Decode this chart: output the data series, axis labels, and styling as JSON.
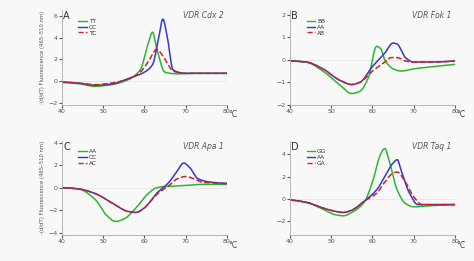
{
  "panels": [
    {
      "label": "A",
      "title": "VDR Cdx 2",
      "legend": [
        "TT",
        "CC",
        "TC"
      ],
      "colors": [
        "#2db52d",
        "#3535d0",
        "#cc2222"
      ],
      "dashes": [
        false,
        false,
        true
      ],
      "ylim": [
        -2.2,
        6.5
      ],
      "yticks": [
        -2,
        0,
        2,
        4,
        6
      ],
      "curves": [
        [
          [
            40,
            -0.15
          ],
          [
            44,
            -0.25
          ],
          [
            48,
            -0.5
          ],
          [
            52,
            -0.35
          ],
          [
            56,
            0.1
          ],
          [
            59,
            1.0
          ],
          [
            61,
            3.5
          ],
          [
            62,
            4.5
          ],
          [
            63,
            3.0
          ],
          [
            65,
            0.8
          ],
          [
            68,
            0.65
          ],
          [
            72,
            0.7
          ],
          [
            76,
            0.7
          ],
          [
            80,
            0.7
          ]
        ],
        [
          [
            40,
            -0.1
          ],
          [
            44,
            -0.2
          ],
          [
            48,
            -0.4
          ],
          [
            52,
            -0.3
          ],
          [
            56,
            0.2
          ],
          [
            60,
            0.8
          ],
          [
            62,
            1.5
          ],
          [
            63.5,
            4.0
          ],
          [
            64.5,
            5.7
          ],
          [
            65.5,
            4.2
          ],
          [
            67,
            1.0
          ],
          [
            70,
            0.7
          ],
          [
            75,
            0.7
          ],
          [
            80,
            0.7
          ]
        ],
        [
          [
            40,
            -0.1
          ],
          [
            44,
            -0.2
          ],
          [
            48,
            -0.35
          ],
          [
            52,
            -0.2
          ],
          [
            56,
            0.15
          ],
          [
            59,
            0.8
          ],
          [
            61,
            1.8
          ],
          [
            63,
            2.9
          ],
          [
            65,
            2.0
          ],
          [
            67,
            0.9
          ],
          [
            70,
            0.7
          ],
          [
            74,
            0.7
          ],
          [
            80,
            0.7
          ]
        ]
      ]
    },
    {
      "label": "B",
      "title": "VDR Fok 1",
      "legend": [
        "BB",
        "AA",
        "AB"
      ],
      "colors": [
        "#2db52d",
        "#3535d0",
        "#cc2222"
      ],
      "dashes": [
        false,
        false,
        true
      ],
      "ylim": [
        -2.0,
        2.2
      ],
      "yticks": [
        -2,
        -1,
        0,
        1,
        2
      ],
      "curves": [
        [
          [
            40,
            -0.05
          ],
          [
            44,
            -0.1
          ],
          [
            48,
            -0.5
          ],
          [
            52,
            -1.1
          ],
          [
            55,
            -1.5
          ],
          [
            57,
            -1.4
          ],
          [
            59,
            -0.8
          ],
          [
            61,
            0.6
          ],
          [
            62,
            0.5
          ],
          [
            63,
            0.0
          ],
          [
            65,
            -0.4
          ],
          [
            67,
            -0.5
          ],
          [
            70,
            -0.4
          ],
          [
            75,
            -0.3
          ],
          [
            80,
            -0.2
          ]
        ],
        [
          [
            40,
            -0.05
          ],
          [
            44,
            -0.1
          ],
          [
            48,
            -0.4
          ],
          [
            52,
            -0.9
          ],
          [
            55,
            -1.1
          ],
          [
            57,
            -1.0
          ],
          [
            60,
            -0.3
          ],
          [
            63,
            0.3
          ],
          [
            65,
            0.75
          ],
          [
            66,
            0.7
          ],
          [
            68,
            0.1
          ],
          [
            70,
            -0.1
          ],
          [
            74,
            -0.1
          ],
          [
            80,
            -0.05
          ]
        ],
        [
          [
            40,
            -0.05
          ],
          [
            44,
            -0.1
          ],
          [
            48,
            -0.4
          ],
          [
            52,
            -0.9
          ],
          [
            55,
            -1.1
          ],
          [
            57,
            -1.0
          ],
          [
            60,
            -0.5
          ],
          [
            63,
            -0.1
          ],
          [
            64.5,
            0.1
          ],
          [
            66,
            0.1
          ],
          [
            68,
            -0.05
          ],
          [
            70,
            -0.1
          ],
          [
            74,
            -0.1
          ],
          [
            80,
            -0.05
          ]
        ]
      ]
    },
    {
      "label": "C",
      "title": "VDR Apa 1",
      "legend": [
        "AA",
        "CC",
        "AC"
      ],
      "colors": [
        "#2db52d",
        "#3535d0",
        "#cc2222"
      ],
      "dashes": [
        false,
        false,
        true
      ],
      "ylim": [
        -4.2,
        4.2
      ],
      "yticks": [
        -4,
        -2,
        0,
        2,
        4
      ],
      "curves": [
        [
          [
            40,
            0.0
          ],
          [
            44,
            -0.1
          ],
          [
            48,
            -1.0
          ],
          [
            51,
            -2.5
          ],
          [
            53,
            -3.0
          ],
          [
            55,
            -2.8
          ],
          [
            58,
            -1.8
          ],
          [
            61,
            -0.5
          ],
          [
            63,
            0.0
          ],
          [
            65,
            0.1
          ],
          [
            68,
            0.15
          ],
          [
            70,
            0.2
          ],
          [
            74,
            0.3
          ],
          [
            78,
            0.3
          ],
          [
            80,
            0.3
          ]
        ],
        [
          [
            40,
            0.0
          ],
          [
            44,
            -0.1
          ],
          [
            48,
            -0.5
          ],
          [
            52,
            -1.3
          ],
          [
            56,
            -2.1
          ],
          [
            58,
            -2.2
          ],
          [
            60,
            -1.8
          ],
          [
            63,
            -0.5
          ],
          [
            66,
            0.5
          ],
          [
            68,
            1.5
          ],
          [
            69.5,
            2.2
          ],
          [
            71,
            1.8
          ],
          [
            73,
            0.8
          ],
          [
            76,
            0.5
          ],
          [
            80,
            0.4
          ]
        ],
        [
          [
            40,
            0.0
          ],
          [
            44,
            -0.1
          ],
          [
            48,
            -0.5
          ],
          [
            52,
            -1.3
          ],
          [
            56,
            -2.1
          ],
          [
            58,
            -2.2
          ],
          [
            60,
            -1.8
          ],
          [
            63,
            -0.6
          ],
          [
            66,
            0.2
          ],
          [
            68,
            0.8
          ],
          [
            70,
            1.0
          ],
          [
            72,
            0.8
          ],
          [
            74,
            0.5
          ],
          [
            78,
            0.4
          ],
          [
            80,
            0.35
          ]
        ]
      ]
    },
    {
      "label": "D",
      "title": "VDR Taq 1",
      "legend": [
        "GG",
        "AA",
        "GA"
      ],
      "colors": [
        "#2db52d",
        "#3535d0",
        "#cc2222"
      ],
      "dashes": [
        false,
        false,
        true
      ],
      "ylim": [
        -3.2,
        5.2
      ],
      "yticks": [
        -2,
        0,
        2,
        4
      ],
      "curves": [
        [
          [
            40,
            -0.1
          ],
          [
            44,
            -0.3
          ],
          [
            48,
            -0.9
          ],
          [
            51,
            -1.4
          ],
          [
            53,
            -1.5
          ],
          [
            55,
            -1.2
          ],
          [
            58,
            -0.3
          ],
          [
            60,
            1.5
          ],
          [
            62,
            4.0
          ],
          [
            63,
            4.5
          ],
          [
            64,
            3.5
          ],
          [
            66,
            0.8
          ],
          [
            68,
            -0.4
          ],
          [
            70,
            -0.7
          ],
          [
            74,
            -0.6
          ],
          [
            80,
            -0.5
          ]
        ],
        [
          [
            40,
            -0.1
          ],
          [
            44,
            -0.3
          ],
          [
            48,
            -0.8
          ],
          [
            51,
            -1.1
          ],
          [
            53,
            -1.2
          ],
          [
            55,
            -1.0
          ],
          [
            58,
            -0.2
          ],
          [
            61,
            0.8
          ],
          [
            63,
            2.0
          ],
          [
            65,
            3.2
          ],
          [
            66,
            3.5
          ],
          [
            67,
            2.5
          ],
          [
            69,
            0.5
          ],
          [
            71,
            -0.5
          ],
          [
            74,
            -0.5
          ],
          [
            80,
            -0.5
          ]
        ],
        [
          [
            40,
            -0.1
          ],
          [
            44,
            -0.3
          ],
          [
            48,
            -0.8
          ],
          [
            51,
            -1.1
          ],
          [
            53,
            -1.2
          ],
          [
            55,
            -1.0
          ],
          [
            58,
            -0.2
          ],
          [
            61,
            0.5
          ],
          [
            63,
            1.5
          ],
          [
            65,
            2.3
          ],
          [
            66,
            2.4
          ],
          [
            68,
            1.5
          ],
          [
            70,
            0.2
          ],
          [
            72,
            -0.5
          ],
          [
            74,
            -0.5
          ],
          [
            80,
            -0.5
          ]
        ]
      ]
    }
  ],
  "ylabel": "-(d/dT) Fluorescence (465–510 nm)"
}
